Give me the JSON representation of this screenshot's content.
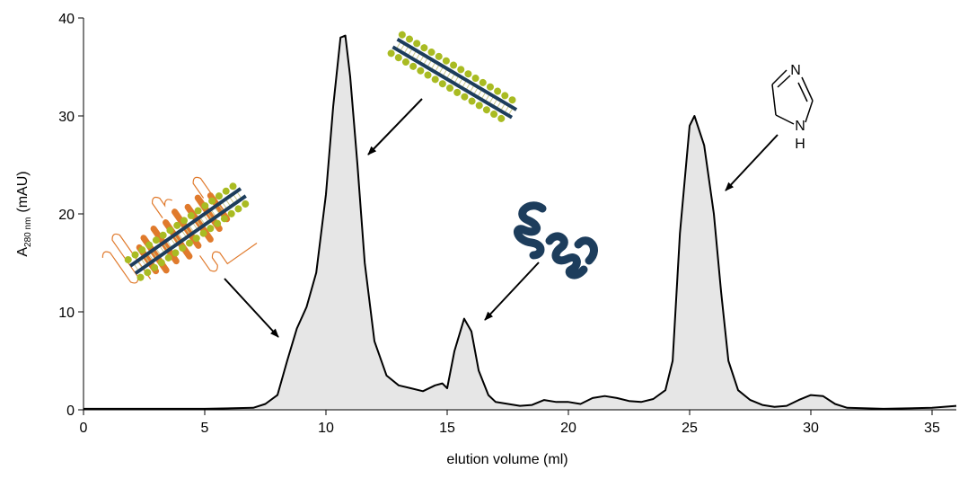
{
  "chart_data": {
    "type": "area-line",
    "x_label": "elution volume (ml)",
    "y_label": "A",
    "y_label_subscript": "280 nm",
    "y_label_unit": "(mAU)",
    "x": [
      0,
      5,
      7,
      7.5,
      8,
      8.4,
      8.8,
      9.2,
      9.6,
      10,
      10.3,
      10.6,
      10.8,
      11,
      11.3,
      11.6,
      12,
      12.5,
      13,
      13.5,
      14,
      14.5,
      14.8,
      15,
      15.3,
      15.7,
      16,
      16.3,
      16.7,
      17,
      18,
      18.5,
      19,
      19.5,
      20,
      20.5,
      21,
      21.5,
      22,
      22.5,
      23,
      23.5,
      24,
      24.3,
      24.6,
      25,
      25.2,
      25.6,
      26,
      26.3,
      26.6,
      27,
      27.5,
      28,
      28.5,
      29,
      29.5,
      30,
      30.5,
      31,
      31.5,
      33,
      35,
      36
    ],
    "values": [
      0.1,
      0.1,
      0.2,
      0.6,
      1.5,
      5,
      8.3,
      10.5,
      14,
      22,
      31,
      38,
      38.2,
      34,
      25,
      15,
      7,
      3.5,
      2.5,
      2.2,
      1.9,
      2.5,
      2.7,
      2.2,
      6,
      9.3,
      8,
      4,
      1.5,
      0.8,
      0.4,
      0.5,
      1.0,
      0.8,
      0.8,
      0.6,
      1.2,
      1.4,
      1.2,
      0.9,
      0.8,
      1.1,
      2.0,
      5,
      18,
      29,
      30,
      27,
      20,
      12,
      5,
      2,
      1,
      0.5,
      0.3,
      0.4,
      1.0,
      1.5,
      1.4,
      0.6,
      0.2,
      0.1,
      0.2,
      0.4
    ],
    "color": "#000000",
    "fill": "#e6e6e6",
    "xlim": [
      0,
      36
    ],
    "xticks": [
      0,
      5,
      10,
      15,
      20,
      25,
      30,
      35
    ],
    "ylim": [
      0,
      40
    ],
    "yticks": [
      0,
      10,
      20,
      30,
      40
    ],
    "annotations": [
      "N",
      "N",
      "H"
    ]
  }
}
